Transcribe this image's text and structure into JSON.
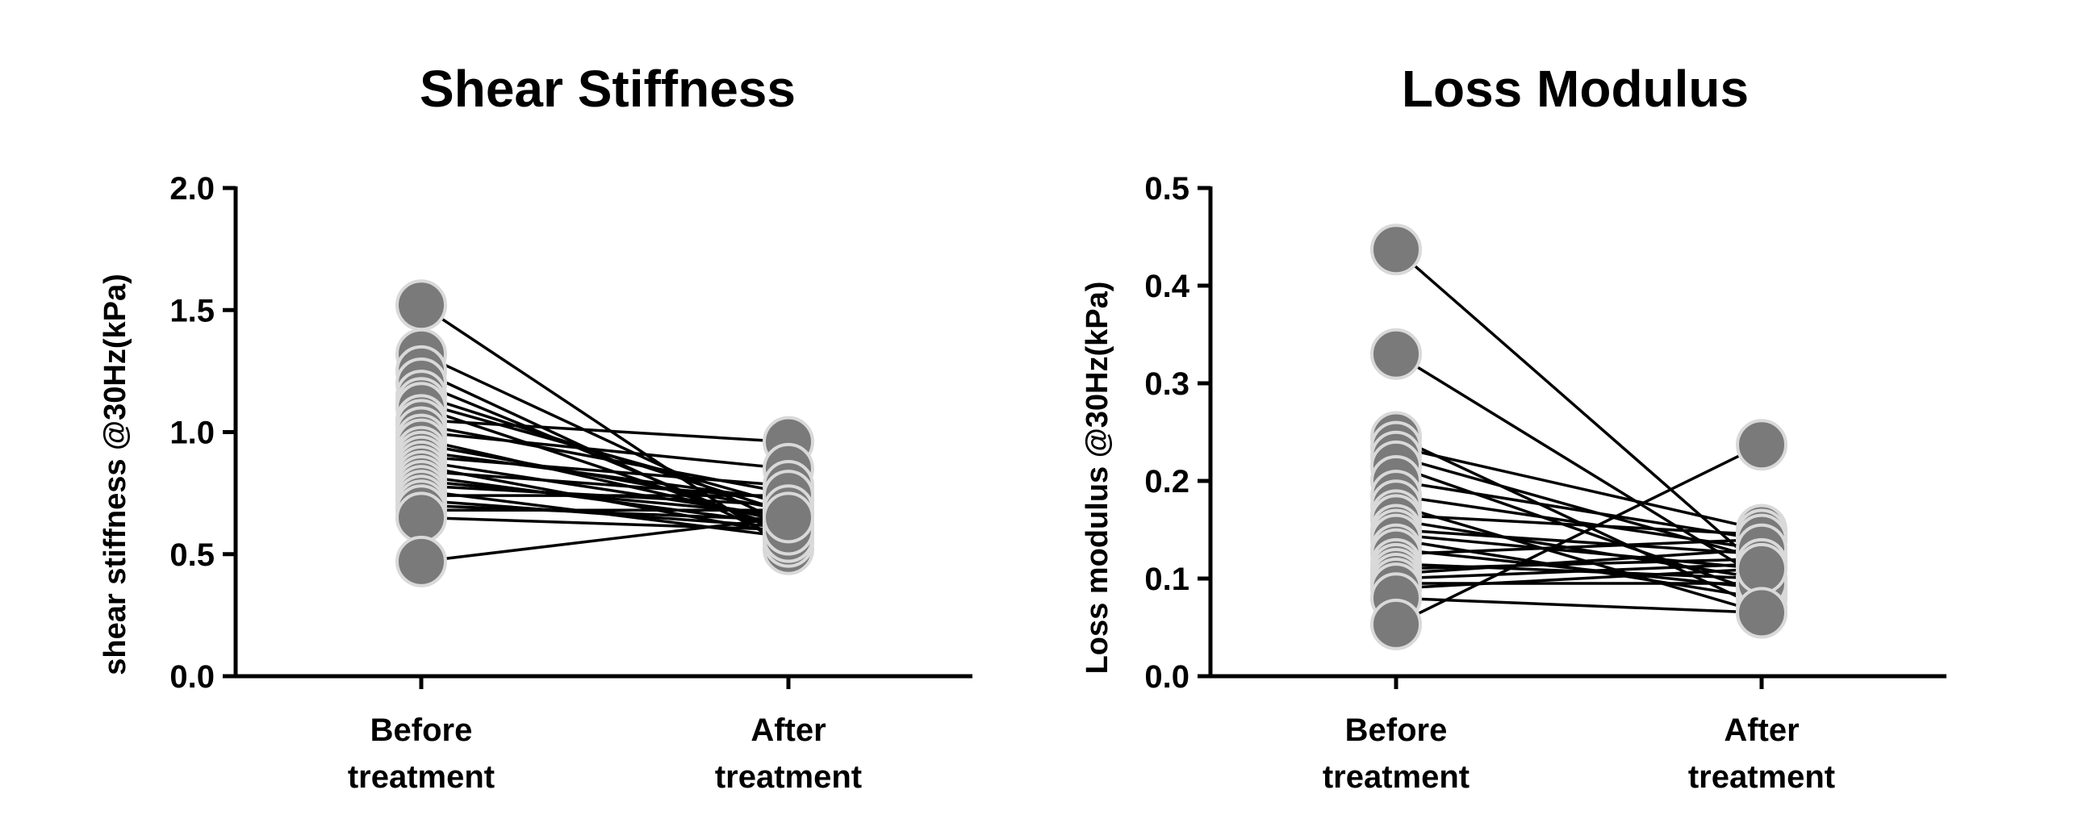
{
  "chart_data": [
    {
      "type": "paired-dot",
      "title": "Shear Stiffness",
      "xlabel": "",
      "ylabel": "shear stiffness  @30Hz(kPa)",
      "categories": [
        [
          "Before",
          "treatment"
        ],
        [
          "After",
          "treatment"
        ]
      ],
      "ylim": [
        0,
        2.0
      ],
      "yticks": [
        "0.0",
        "0.5",
        "1.0",
        "1.5",
        "2.0"
      ],
      "ytick_values": [
        0,
        0.5,
        1.0,
        1.5,
        2.0
      ],
      "before": [
        1.52,
        1.32,
        1.25,
        1.2,
        1.15,
        1.12,
        1.1,
        1.05,
        1.03,
        1.0,
        0.97,
        0.95,
        0.92,
        0.9,
        0.88,
        0.86,
        0.84,
        0.82,
        0.8,
        0.78,
        0.76,
        0.74,
        0.72,
        0.7,
        0.68,
        0.65,
        0.47
      ],
      "after": [
        0.52,
        0.62,
        0.55,
        0.58,
        0.67,
        0.7,
        0.6,
        0.96,
        0.75,
        0.85,
        0.63,
        0.68,
        0.72,
        0.78,
        0.65,
        0.58,
        0.73,
        0.62,
        0.66,
        0.7,
        0.57,
        0.74,
        0.61,
        0.64,
        0.68,
        0.6,
        0.65
      ],
      "marker_color": "#7a7a7a",
      "marker_edge": "#d9d9d9",
      "line_color": "#000000"
    },
    {
      "type": "paired-dot",
      "title": "Loss Modulus",
      "xlabel": "",
      "ylabel": "Loss modulus  @30Hz(kPa)",
      "categories": [
        [
          "Before",
          "treatment"
        ],
        [
          "After",
          "treatment"
        ]
      ],
      "ylim": [
        0,
        0.5
      ],
      "yticks": [
        "0.0",
        "0.1",
        "0.2",
        "0.3",
        "0.4",
        "0.5"
      ],
      "ytick_values": [
        0,
        0.1,
        0.2,
        0.3,
        0.4,
        0.5
      ],
      "before": [
        0.437,
        0.33,
        0.245,
        0.235,
        0.225,
        0.215,
        0.2,
        0.185,
        0.175,
        0.165,
        0.16,
        0.15,
        0.145,
        0.14,
        0.13,
        0.125,
        0.115,
        0.11,
        0.105,
        0.1,
        0.095,
        0.09,
        0.08,
        0.053
      ],
      "after": [
        0.11,
        0.1,
        0.07,
        0.15,
        0.12,
        0.085,
        0.14,
        0.13,
        0.065,
        0.145,
        0.1,
        0.125,
        0.11,
        0.08,
        0.09,
        0.14,
        0.1,
        0.12,
        0.13,
        0.115,
        0.095,
        0.11,
        0.065,
        0.237
      ],
      "marker_color": "#7a7a7a",
      "marker_edge": "#d9d9d9",
      "line_color": "#000000"
    }
  ]
}
